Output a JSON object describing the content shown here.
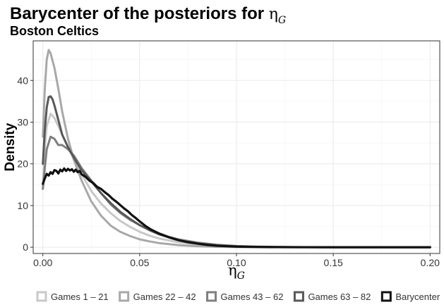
{
  "chart_data": {
    "type": "line",
    "title": "Barycenter of the posteriors for ",
    "title_symbol": "η",
    "title_subscript": "G",
    "subtitle": "Boston Celtics",
    "xlabel_symbol": "η",
    "xlabel_subscript": "G",
    "ylabel": "Density",
    "xlim": [
      -0.005,
      0.205
    ],
    "ylim": [
      -1.5,
      49.5
    ],
    "x_ticks": [
      0.0,
      0.05,
      0.1,
      0.15,
      0.2
    ],
    "x_tick_labels": [
      "0.00",
      "0.05",
      "0.10",
      "0.15",
      "0.20"
    ],
    "y_ticks": [
      0,
      10,
      20,
      30,
      40
    ],
    "y_tick_labels": [
      "0",
      "10",
      "20",
      "30",
      "40"
    ],
    "grid": true,
    "legend_position": "bottom",
    "series": [
      {
        "name": "Games 1 – 21",
        "color": "#c8c8c8",
        "width": 3,
        "x": [
          0.0,
          0.001,
          0.002,
          0.004,
          0.006,
          0.008,
          0.01,
          0.013,
          0.016,
          0.02,
          0.025,
          0.03,
          0.035,
          0.04,
          0.045,
          0.05,
          0.055,
          0.06,
          0.07,
          0.08,
          0.09,
          0.1,
          0.11,
          0.12,
          0.13,
          0.15,
          0.2
        ],
        "y": [
          15,
          24,
          29,
          32,
          31,
          29,
          27,
          24,
          21,
          17.5,
          13.5,
          10.5,
          8.2,
          6.3,
          4.9,
          3.7,
          2.8,
          2.1,
          1.2,
          0.6,
          0.3,
          0.15,
          0.08,
          0.04,
          0.02,
          0,
          0
        ]
      },
      {
        "name": "Games 22 – 42",
        "color": "#a8a8a8",
        "width": 3,
        "x": [
          0.0,
          0.001,
          0.002,
          0.003,
          0.004,
          0.006,
          0.008,
          0.01,
          0.013,
          0.016,
          0.02,
          0.025,
          0.03,
          0.035,
          0.04,
          0.045,
          0.05,
          0.055,
          0.06,
          0.07,
          0.08,
          0.09,
          0.1,
          0.11,
          0.12,
          0.15,
          0.2
        ],
        "y": [
          26.5,
          38,
          45,
          47.3,
          46.5,
          43,
          38,
          32.5,
          26,
          21,
          16,
          11,
          7.6,
          5.2,
          3.7,
          2.7,
          1.9,
          1.4,
          1.0,
          0.5,
          0.22,
          0.1,
          0.05,
          0.02,
          0,
          0,
          0
        ]
      },
      {
        "name": "Games 43 – 62",
        "color": "#7f7f7f",
        "width": 3,
        "x": [
          0.0,
          0.001,
          0.002,
          0.004,
          0.006,
          0.008,
          0.01,
          0.013,
          0.016,
          0.02,
          0.025,
          0.03,
          0.035,
          0.04,
          0.045,
          0.05,
          0.055,
          0.06,
          0.065,
          0.07,
          0.08,
          0.09,
          0.1,
          0.11,
          0.12,
          0.13,
          0.15,
          0.2
        ],
        "y": [
          14,
          19,
          23.5,
          26.5,
          26,
          24.5,
          24.5,
          23.5,
          22,
          19,
          16,
          13,
          10.3,
          8.2,
          6.6,
          5.3,
          4.2,
          3.3,
          2.5,
          1.9,
          1.1,
          0.6,
          0.3,
          0.15,
          0.08,
          0.04,
          0,
          0
        ]
      },
      {
        "name": "Games 63 – 82",
        "color": "#585858",
        "width": 3,
        "x": [
          0.0,
          0.001,
          0.002,
          0.003,
          0.004,
          0.005,
          0.006,
          0.008,
          0.01,
          0.013,
          0.016,
          0.02,
          0.025,
          0.03,
          0.035,
          0.04,
          0.045,
          0.05,
          0.055,
          0.06,
          0.07,
          0.08,
          0.09,
          0.1,
          0.11,
          0.12,
          0.15,
          0.2
        ],
        "y": [
          20,
          28,
          33.5,
          36,
          36.2,
          35.5,
          34,
          30.5,
          27,
          24,
          21.5,
          18.5,
          15.8,
          13,
          10.6,
          8.5,
          6.8,
          5.3,
          4.1,
          3.1,
          1.7,
          0.9,
          0.45,
          0.2,
          0.1,
          0.05,
          0,
          0
        ]
      },
      {
        "name": "Barycenter",
        "color": "#111111",
        "width": 3.2,
        "x": [
          0.0,
          0.001,
          0.002,
          0.003,
          0.004,
          0.005,
          0.006,
          0.007,
          0.008,
          0.009,
          0.01,
          0.011,
          0.012,
          0.013,
          0.014,
          0.015,
          0.016,
          0.017,
          0.018,
          0.019,
          0.02,
          0.022,
          0.024,
          0.026,
          0.028,
          0.03,
          0.032,
          0.034,
          0.036,
          0.038,
          0.04,
          0.042,
          0.044,
          0.046,
          0.048,
          0.05,
          0.053,
          0.056,
          0.06,
          0.065,
          0.07,
          0.075,
          0.08,
          0.085,
          0.09,
          0.1,
          0.11,
          0.12,
          0.13,
          0.15,
          0.2
        ],
        "y": [
          15.2,
          16.5,
          17.6,
          17.2,
          18.0,
          17.6,
          18.5,
          18.3,
          17.7,
          18.6,
          18.2,
          18.9,
          18.3,
          18.8,
          18.4,
          18.7,
          18.1,
          18.6,
          18.0,
          18.3,
          17.5,
          16.9,
          16.0,
          15.4,
          14.5,
          14.0,
          13.2,
          12.5,
          11.6,
          10.9,
          10.1,
          9.3,
          8.6,
          7.7,
          7.0,
          6.2,
          5.1,
          4.2,
          3.3,
          2.4,
          1.7,
          1.2,
          0.85,
          0.55,
          0.35,
          0.15,
          0.07,
          0.03,
          0.01,
          0,
          0
        ]
      }
    ]
  }
}
